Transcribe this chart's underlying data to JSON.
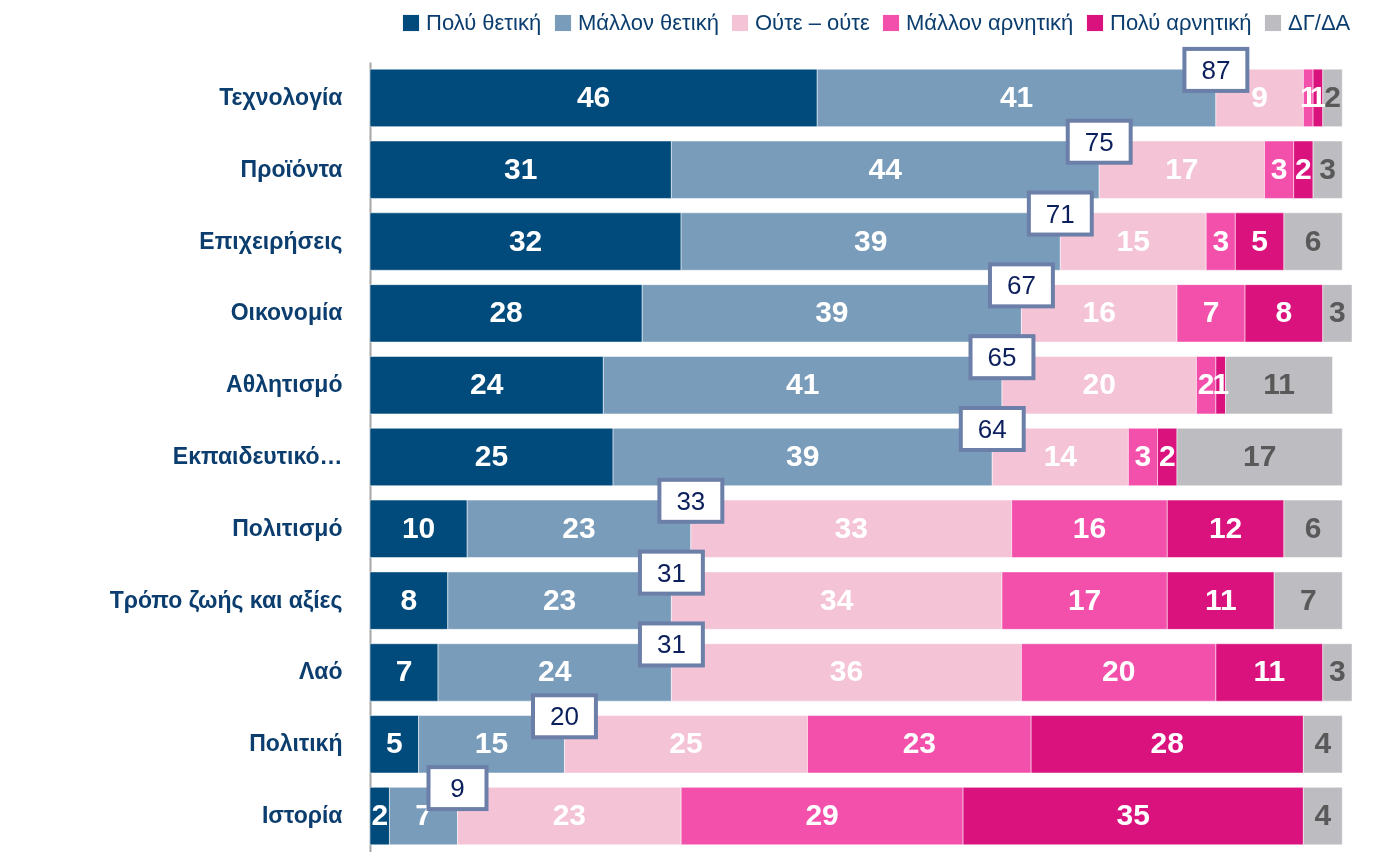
{
  "chart_data": {
    "type": "bar",
    "orientation": "horizontal",
    "stacked": true,
    "data_labels": true,
    "legend": "top right",
    "categories": [
      "Τεχνολογία",
      "Προϊόντα",
      "Επιχειρήσεις",
      "Οικονομία",
      "Αθλητισμό",
      "Εκπαιδευτικό…",
      "Πολιτισμό",
      "Τρόπο ζωής και αξίες",
      "Λαό",
      "Πολιτική",
      "Ιστορία"
    ],
    "series": [
      {
        "name": "Πολύ θετική",
        "color": "#004b7c",
        "values": [
          46,
          31,
          32,
          28,
          24,
          25,
          10,
          8,
          7,
          5,
          2
        ]
      },
      {
        "name": "Μάλλον θετική",
        "color": "#7a9cbb",
        "values": [
          41,
          44,
          39,
          39,
          41,
          39,
          23,
          23,
          24,
          15,
          7
        ]
      },
      {
        "name": "Ούτε – ούτε",
        "color": "#f4c3d6",
        "values": [
          9,
          17,
          15,
          16,
          20,
          14,
          33,
          34,
          36,
          25,
          23
        ]
      },
      {
        "name": "Μάλλον αρνητική",
        "color": "#f250ab",
        "values": [
          1,
          3,
          3,
          7,
          2,
          3,
          16,
          17,
          20,
          23,
          29
        ]
      },
      {
        "name": "Πολύ αρνητική",
        "color": "#d9127e",
        "values": [
          1,
          2,
          5,
          8,
          1,
          2,
          12,
          11,
          11,
          28,
          35
        ]
      },
      {
        "name": "ΔΓ/ΔΑ",
        "color": "#bdbdc1",
        "values": [
          2,
          3,
          6,
          3,
          11,
          17,
          6,
          7,
          3,
          4,
          4
        ]
      }
    ],
    "annotations": [
      {
        "text": "87",
        "x": 87,
        "y": "Τεχνολογία"
      },
      {
        "text": "75",
        "x": 75,
        "y": "Προϊόντα"
      },
      {
        "text": "71",
        "x": 71,
        "y": "Επιχειρήσεις"
      },
      {
        "text": "67",
        "x": 67,
        "y": "Οικονομία"
      },
      {
        "text": "65",
        "x": 65,
        "y": "Αθλητισμό"
      },
      {
        "text": "64",
        "x": 64,
        "y": "Εκπαιδευτικό…"
      },
      {
        "text": "33",
        "x": 33,
        "y": "Πολιτισμό"
      },
      {
        "text": "31",
        "x": 31,
        "y": "Τρόπο ζωής και αξίες"
      },
      {
        "text": "31",
        "x": 31,
        "y": "Λαό"
      },
      {
        "text": "20",
        "x": 20,
        "y": "Πολιτική"
      },
      {
        "text": "9",
        "x": 9,
        "y": "Ιστορία"
      }
    ]
  }
}
